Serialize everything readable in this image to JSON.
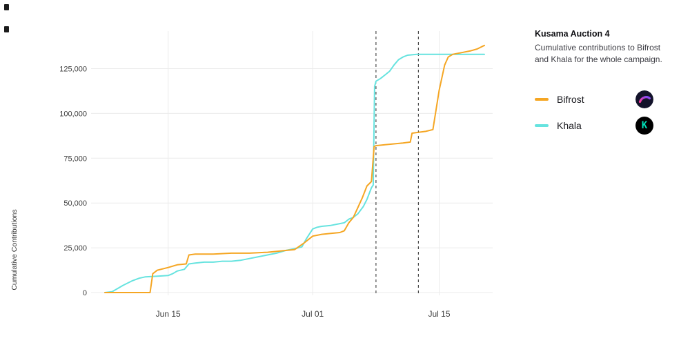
{
  "chart_data": {
    "type": "line",
    "title": "Kusama Auction 4",
    "subtitle": "Cumulative contributions to Bifrost and Khala for the whole campaign.",
    "ylabel": "Cumulative Contributions",
    "grid": true,
    "legend_position": "right",
    "x_axis": {
      "kind": "date",
      "xlim_days": [
        0,
        42
      ],
      "ticks": [
        {
          "day": 7,
          "label": "Jun 15"
        },
        {
          "day": 23,
          "label": "Jul 01"
        },
        {
          "day": 37,
          "label": "Jul 15"
        }
      ]
    },
    "y_axis": {
      "ylim": [
        0,
        146000
      ],
      "ticks": [
        0,
        25000,
        50000,
        75000,
        100000,
        125000
      ],
      "labels": [
        "0",
        "25,000",
        "50,000",
        "75,000",
        "100,000",
        "125,000"
      ]
    },
    "vlines": {
      "days": [
        30,
        34.7
      ],
      "color": "#4A4A4A",
      "style": "dashed"
    },
    "series": [
      {
        "name": "Bifrost",
        "color": "#F5A623",
        "icon": "bifrost-logo",
        "icon_bg": "#13132B",
        "icon_gradient": [
          "#FF3B9A",
          "#7B4DFF"
        ],
        "points": [
          [
            0,
            0
          ],
          [
            5,
            0
          ],
          [
            5.3,
            10500
          ],
          [
            5.8,
            12500
          ],
          [
            7,
            14000
          ],
          [
            8,
            15500
          ],
          [
            9,
            16000
          ],
          [
            9.3,
            21000
          ],
          [
            10,
            21500
          ],
          [
            12,
            21500
          ],
          [
            14,
            22000
          ],
          [
            16,
            22000
          ],
          [
            18,
            22500
          ],
          [
            20,
            23500
          ],
          [
            21,
            24000
          ],
          [
            22,
            27500
          ],
          [
            23,
            31500
          ],
          [
            24,
            32500
          ],
          [
            25,
            33000
          ],
          [
            26,
            33500
          ],
          [
            26.5,
            34500
          ],
          [
            27,
            39000
          ],
          [
            27.5,
            42000
          ],
          [
            28,
            47500
          ],
          [
            28.5,
            53000
          ],
          [
            29,
            59500
          ],
          [
            29.5,
            62000
          ],
          [
            29.8,
            81500
          ],
          [
            30,
            82000
          ],
          [
            31,
            82500
          ],
          [
            32,
            83000
          ],
          [
            33,
            83500
          ],
          [
            33.8,
            84000
          ],
          [
            34,
            89000
          ],
          [
            34.7,
            89500
          ],
          [
            35.5,
            90000
          ],
          [
            36.3,
            91000
          ],
          [
            37,
            113000
          ],
          [
            37.6,
            127000
          ],
          [
            38,
            131500
          ],
          [
            38.5,
            133000
          ],
          [
            39.5,
            134000
          ],
          [
            40.5,
            135000
          ],
          [
            41.2,
            136000
          ],
          [
            42,
            138000
          ]
        ]
      },
      {
        "name": "Khala",
        "color": "#66E3DF",
        "icon": "khala-logo",
        "icon_bg": "#000000",
        "icon_fg": "#00DFB7",
        "icon_glyph": "K",
        "points": [
          [
            0,
            0
          ],
          [
            0.8,
            500
          ],
          [
            1.5,
            2500
          ],
          [
            2,
            4000
          ],
          [
            3,
            6500
          ],
          [
            3.8,
            8000
          ],
          [
            4.5,
            8800
          ],
          [
            6,
            9200
          ],
          [
            7,
            9500
          ],
          [
            7.5,
            10500
          ],
          [
            8,
            12000
          ],
          [
            8.8,
            13000
          ],
          [
            9.3,
            16000
          ],
          [
            10,
            16500
          ],
          [
            11,
            17000
          ],
          [
            12,
            17000
          ],
          [
            13,
            17500
          ],
          [
            14,
            17500
          ],
          [
            15,
            18000
          ],
          [
            16,
            19000
          ],
          [
            17,
            20000
          ],
          [
            18,
            21000
          ],
          [
            19,
            22000
          ],
          [
            20,
            23500
          ],
          [
            21,
            24500
          ],
          [
            21.8,
            25500
          ],
          [
            22.3,
            30000
          ],
          [
            23,
            35500
          ],
          [
            23.5,
            36500
          ],
          [
            24,
            37000
          ],
          [
            25,
            37500
          ],
          [
            26,
            38500
          ],
          [
            26.5,
            39000
          ],
          [
            27,
            41000
          ],
          [
            27.5,
            42000
          ],
          [
            28,
            44000
          ],
          [
            28.6,
            48000
          ],
          [
            29,
            52000
          ],
          [
            29.5,
            58500
          ],
          [
            29.7,
            60000
          ],
          [
            29.85,
            115000
          ],
          [
            30,
            118000
          ],
          [
            30.5,
            119500
          ],
          [
            31,
            121500
          ],
          [
            31.5,
            123500
          ],
          [
            32,
            127000
          ],
          [
            32.5,
            130000
          ],
          [
            33,
            131500
          ],
          [
            33.5,
            132500
          ],
          [
            34.5,
            133000
          ],
          [
            38,
            133000
          ],
          [
            42,
            133000
          ]
        ]
      }
    ]
  }
}
